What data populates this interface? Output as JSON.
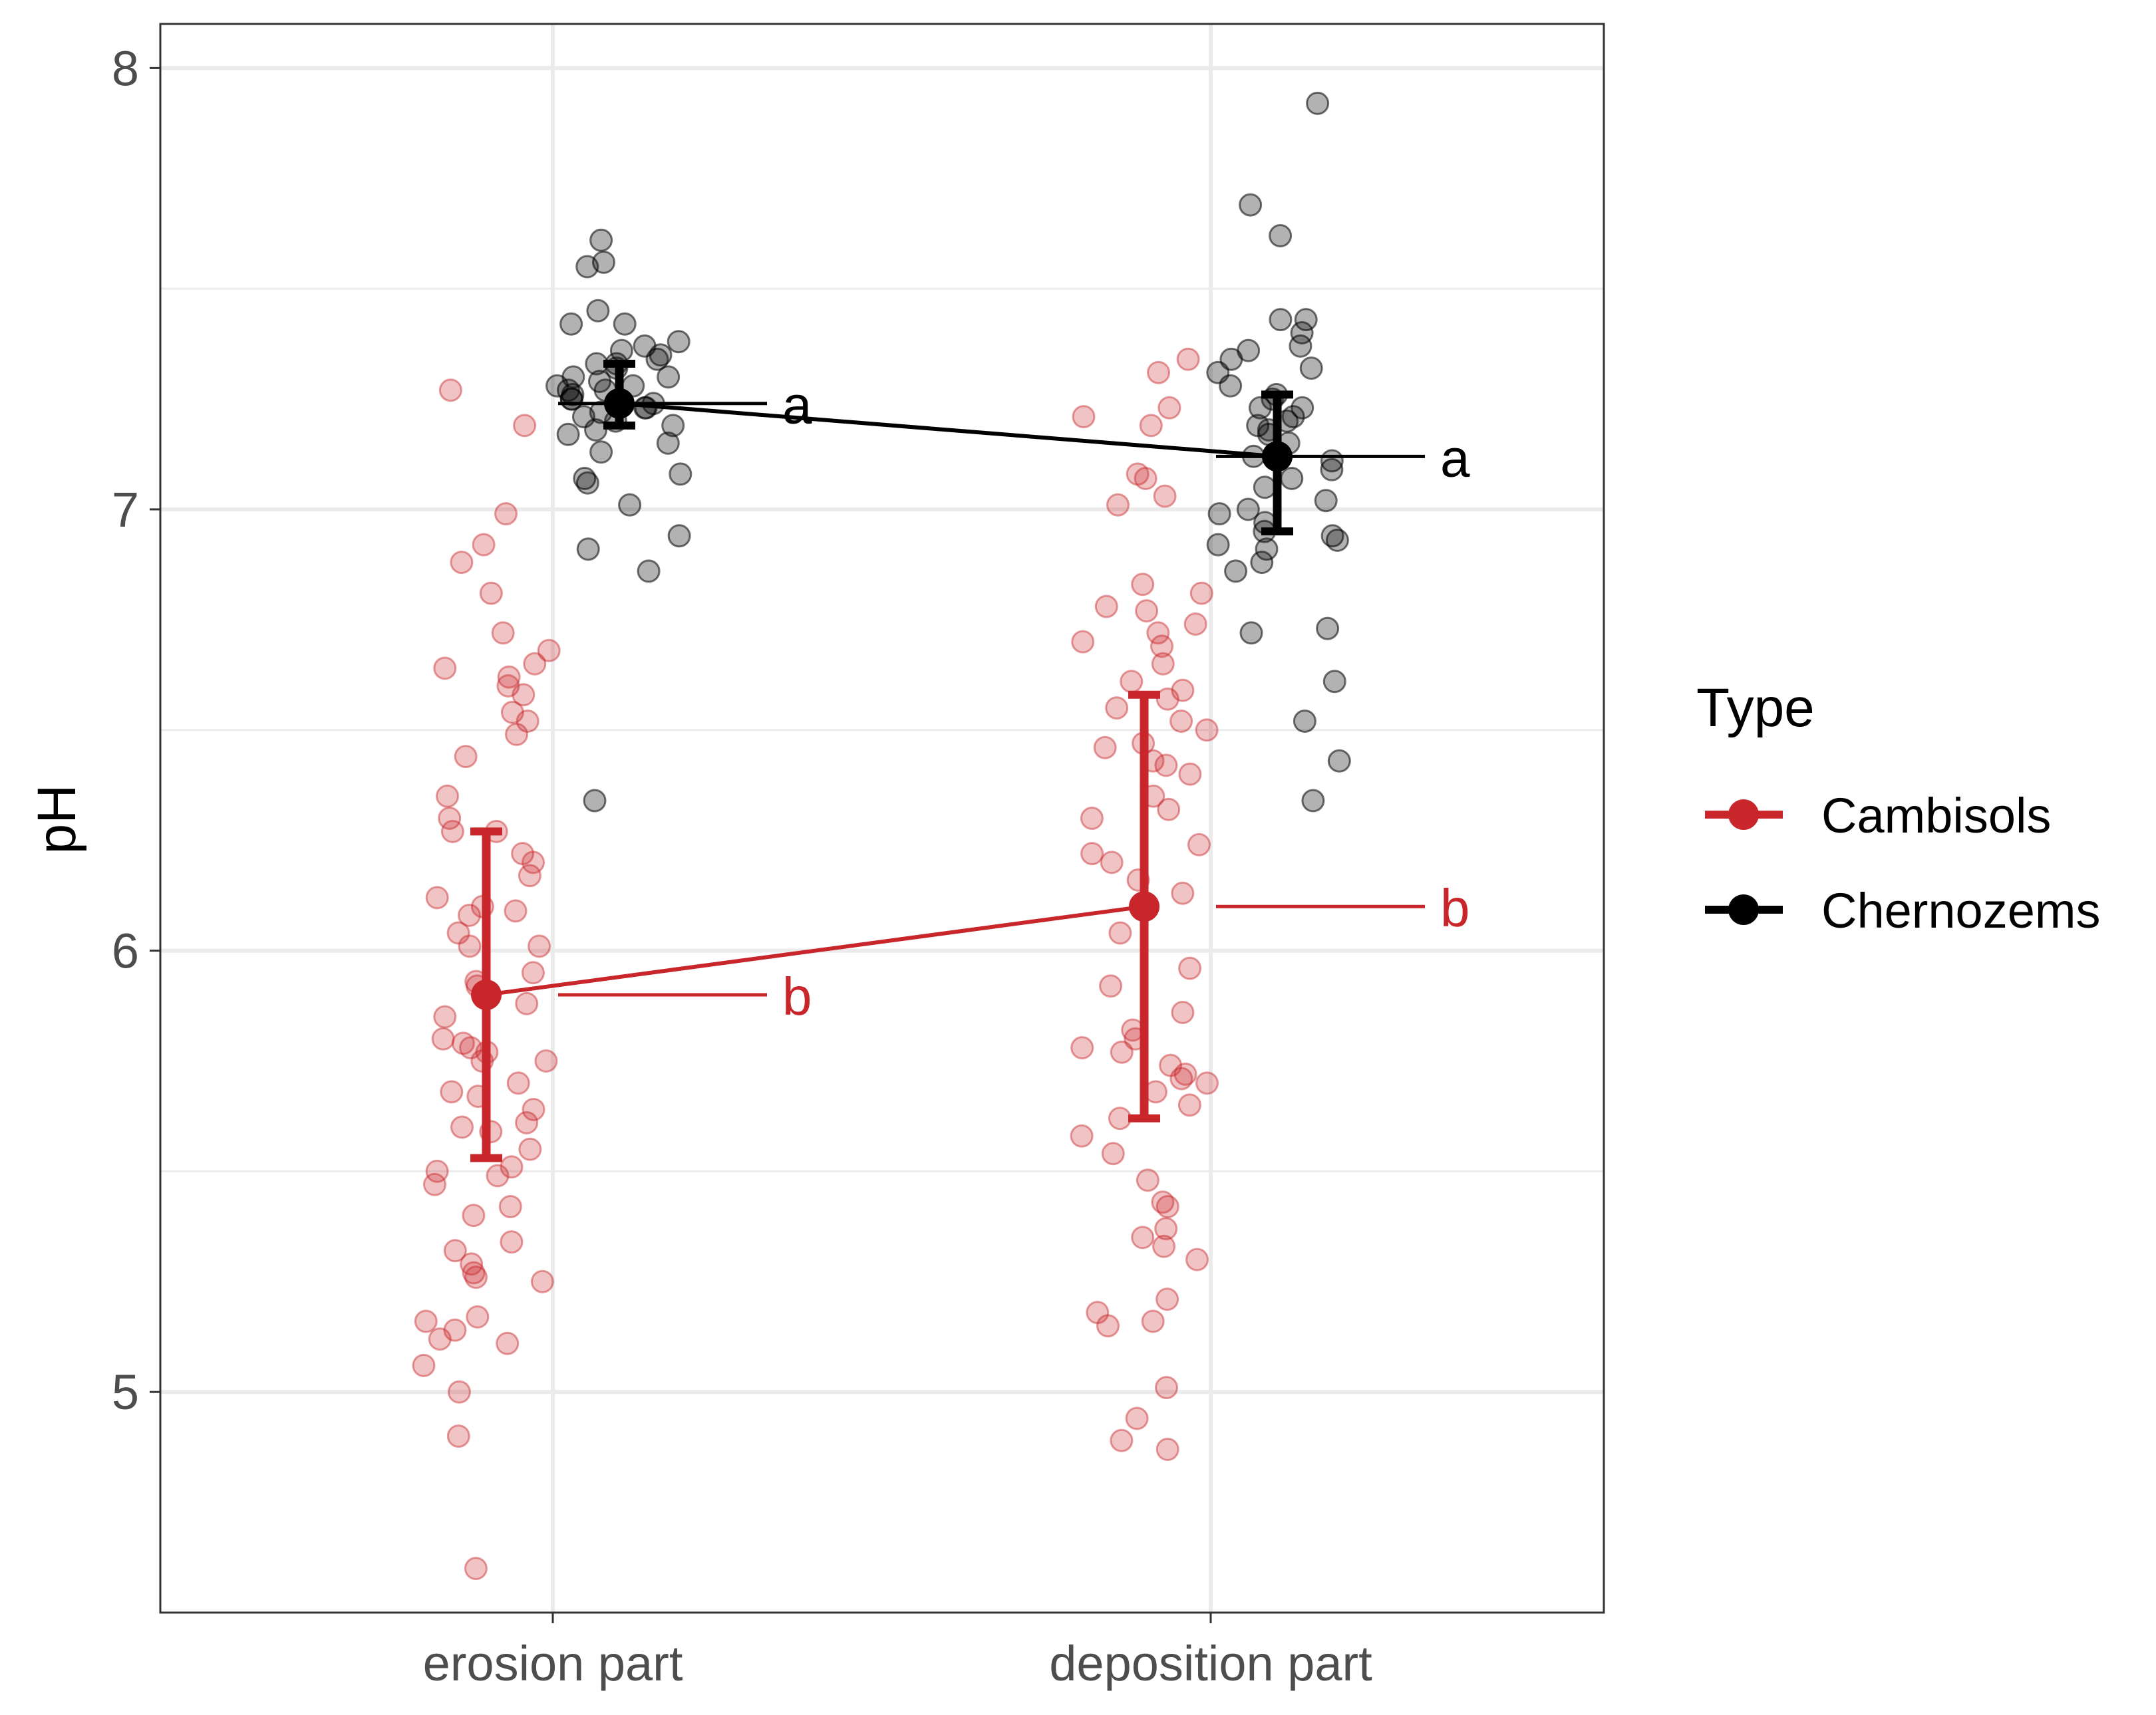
{
  "chart_data": {
    "type": "scatter",
    "title": "",
    "xlabel": "",
    "ylabel": "pH",
    "categories": [
      "erosion part",
      "deposition part"
    ],
    "ylim": [
      4.5,
      8.1
    ],
    "yticks": [
      5,
      6,
      7,
      8
    ],
    "ytick_labels": [
      "5",
      "6",
      "7",
      "8"
    ],
    "grid": true,
    "legend": {
      "title": "Type",
      "placement": "right",
      "entries": [
        "Cambisols",
        "Chernozems"
      ]
    },
    "colors": {
      "Cambisols": "#c8262a",
      "Chernozems": "#000000"
    },
    "series": [
      {
        "name": "Cambisols",
        "color": "#c8262a",
        "means": [
          5.9,
          6.1
        ],
        "error_low": [
          5.53,
          5.62
        ],
        "error_high": [
          6.27,
          6.58
        ],
        "letters": [
          "b",
          "b"
        ],
        "points": [
          [
            6.99,
            6.88,
            6.72,
            6.68,
            6.62,
            6.6,
            6.64,
            6.65,
            6.54,
            6.52,
            6.49,
            6.44,
            6.58,
            6.35,
            6.27,
            6.27,
            6.3,
            6.22,
            6.2,
            6.17,
            6.12,
            6.1,
            6.09,
            6.08,
            6.04,
            6.01,
            6.01,
            5.95,
            5.93,
            5.92,
            5.88,
            5.85,
            5.8,
            5.79,
            5.78,
            5.77,
            5.75,
            5.75,
            5.7,
            5.68,
            5.67,
            5.64,
            5.61,
            5.6,
            5.59,
            5.55,
            5.51,
            5.5,
            5.49,
            5.47,
            5.42,
            5.4,
            5.34,
            5.32,
            5.29,
            5.27,
            5.26,
            5.25,
            5.17,
            5.16,
            5.14,
            5.12,
            5.11,
            5.06,
            5.0,
            4.9,
            4.6,
            7.27,
            7.19,
            6.92,
            6.81
          ],
          [
            7.34,
            7.31,
            7.23,
            7.21,
            7.19,
            7.08,
            7.07,
            7.03,
            7.01,
            6.83,
            6.81,
            6.78,
            6.77,
            6.74,
            6.72,
            6.7,
            6.69,
            6.65,
            6.61,
            6.59,
            6.57,
            6.55,
            6.52,
            6.5,
            6.47,
            6.46,
            6.43,
            6.42,
            6.4,
            6.35,
            6.32,
            6.3,
            6.24,
            6.22,
            6.2,
            6.16,
            6.13,
            6.04,
            5.96,
            5.92,
            5.86,
            5.82,
            5.8,
            5.78,
            5.77,
            5.74,
            5.72,
            5.71,
            5.7,
            5.68,
            5.65,
            5.62,
            5.58,
            5.54,
            5.48,
            5.43,
            5.42,
            5.37,
            5.35,
            5.33,
            5.3,
            5.21,
            5.18,
            5.16,
            5.15,
            5.01,
            4.94,
            4.89,
            4.87
          ]
        ]
      },
      {
        "name": "Chernozems",
        "color": "#000000",
        "means": [
          7.24,
          7.12
        ],
        "error_low": [
          7.19,
          6.95
        ],
        "error_high": [
          7.33,
          7.26
        ],
        "letters": [
          "a",
          "a"
        ],
        "points": [
          [
            7.61,
            7.56,
            7.55,
            7.45,
            7.42,
            7.42,
            7.38,
            7.37,
            7.36,
            7.35,
            7.34,
            7.33,
            7.33,
            7.32,
            7.3,
            7.3,
            7.29,
            7.28,
            7.28,
            7.27,
            7.27,
            7.26,
            7.25,
            7.25,
            7.24,
            7.23,
            7.23,
            7.22,
            7.21,
            7.2,
            7.19,
            7.18,
            7.17,
            7.15,
            7.13,
            7.08,
            7.07,
            7.06,
            7.01,
            6.94,
            6.91,
            6.86,
            6.34
          ],
          [
            7.92,
            7.69,
            7.62,
            7.43,
            7.43,
            7.4,
            7.37,
            7.36,
            7.34,
            7.32,
            7.31,
            7.28,
            7.26,
            7.25,
            7.23,
            7.23,
            7.21,
            7.2,
            7.19,
            7.18,
            7.17,
            7.15,
            7.12,
            7.11,
            7.09,
            7.07,
            7.05,
            7.02,
            7.0,
            6.99,
            6.97,
            6.95,
            6.94,
            6.93,
            6.92,
            6.91,
            6.88,
            6.86,
            6.73,
            6.72,
            6.61,
            6.52,
            6.43,
            6.34
          ]
        ]
      }
    ]
  }
}
